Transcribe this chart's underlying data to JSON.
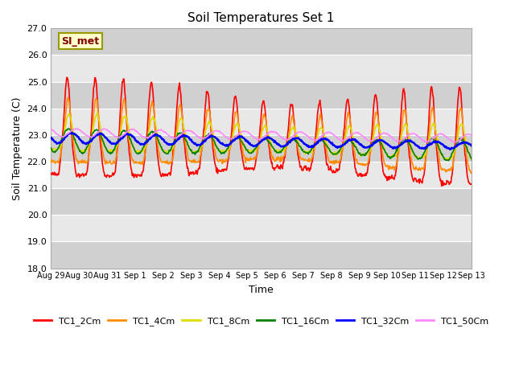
{
  "title": "Soil Temperatures Set 1",
  "xlabel": "Time",
  "ylabel": "Soil Temperature (C)",
  "ylim": [
    18.0,
    27.0
  ],
  "yticks": [
    18.0,
    19.0,
    20.0,
    21.0,
    22.0,
    23.0,
    24.0,
    25.0,
    26.0,
    27.0
  ],
  "xtick_labels": [
    "Aug 29",
    "Aug 30",
    "Aug 31",
    "Sep 1",
    "Sep 2",
    "Sep 3",
    "Sep 4",
    "Sep 5",
    "Sep 6",
    "Sep 7",
    "Sep 8",
    "Sep 9",
    "Sep 10",
    "Sep 11",
    "Sep 12",
    "Sep 13"
  ],
  "series_names": [
    "TC1_2Cm",
    "TC1_4Cm",
    "TC1_8Cm",
    "TC1_16Cm",
    "TC1_32Cm",
    "TC1_50Cm"
  ],
  "annotation_text": "SI_met",
  "annotation_color": "#800000",
  "annotation_bg": "#ffffcc",
  "annotation_border": "#999900",
  "bg_light": "#e8e8e8",
  "bg_dark": "#d0d0d0",
  "grid_color": "#cccccc",
  "n_days": 16,
  "pts_per_day": 48
}
